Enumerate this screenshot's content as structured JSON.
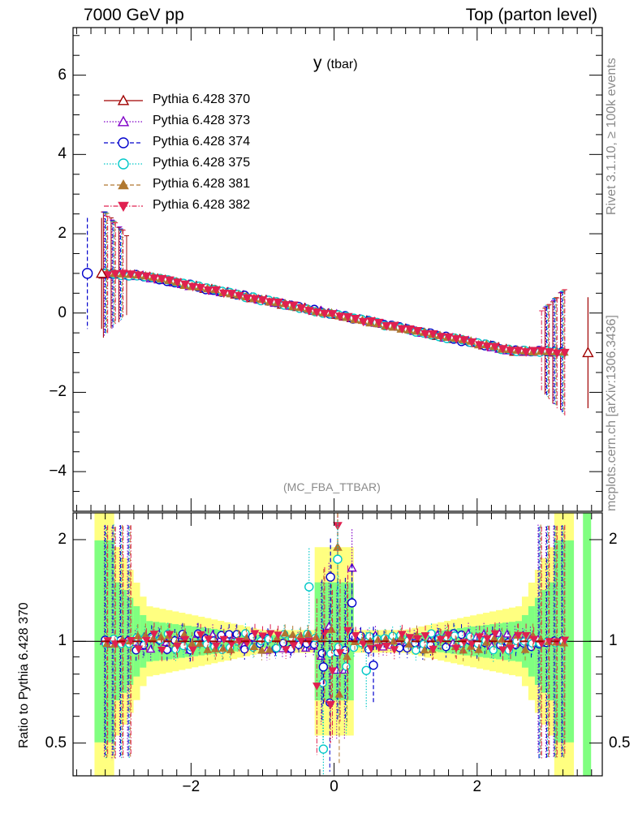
{
  "header": {
    "left_title": "7000 GeV pp",
    "right_title": "Top (parton level)"
  },
  "side_labels": {
    "rivet": "Rivet 3.1.10, ≥ 100k events",
    "mcplots": "mcplots.cern.ch [arXiv:1306.3436]"
  },
  "colors": {
    "370": "#a00000",
    "373": "#8000c8",
    "374": "#0000cc",
    "375": "#00c8c8",
    "381": "#b07830",
    "382": "#e02050",
    "band_yellow": "#ffff80",
    "band_green": "#80ff80"
  },
  "chart_data": [
    {
      "type": "line",
      "title": "y",
      "title_suffix": "(tbar)",
      "watermark": "(MC_FBA_TTBAR)",
      "xlim": [
        -3.65,
        3.75
      ],
      "ylim": [
        -5,
        7.2
      ],
      "y_ticks": [
        {
          "value": -4,
          "label": "−4"
        },
        {
          "value": -2,
          "label": "−2"
        },
        {
          "value": 0,
          "label": "0"
        },
        {
          "value": 2,
          "label": "2"
        },
        {
          "value": 4,
          "label": "4"
        },
        {
          "value": 6,
          "label": "6"
        }
      ],
      "legend_position": "top-left",
      "series": [
        {
          "name": "Pythia 6.428 370",
          "key": "370",
          "marker": "triangle-open",
          "dash": "solid"
        },
        {
          "name": "Pythia 6.428 373",
          "key": "373",
          "marker": "triangle-open",
          "dash": "dotted"
        },
        {
          "name": "Pythia 6.428 374",
          "key": "374",
          "marker": "circle-open",
          "dash": "dashed"
        },
        {
          "name": "Pythia 6.428 375",
          "key": "375",
          "marker": "circle-open",
          "dash": "dotted"
        },
        {
          "name": "Pythia 6.428 381",
          "key": "381",
          "marker": "triangle-filled",
          "dash": "dashed"
        },
        {
          "name": "Pythia 6.428 382",
          "key": "382",
          "marker": "triangle-down-filled",
          "dash": "dashdot"
        }
      ],
      "trend": {
        "x": [
          -3.3,
          -2.7,
          2.5,
          3.3
        ],
        "y": [
          1.0,
          0.95,
          -0.95,
          -1.0
        ]
      },
      "outliers": [
        {
          "series": "374",
          "x": -3.45,
          "y": 1.0,
          "err": 1.4
        },
        {
          "series": "370",
          "x": -3.25,
          "y": 1.0,
          "err": 1.4
        },
        {
          "series": "370",
          "x": 3.55,
          "y": -1.0,
          "err": 1.4
        }
      ]
    },
    {
      "type": "line",
      "ylabel": "Ratio to Pythia 6.428 370",
      "xlim": [
        -3.65,
        3.75
      ],
      "ylim": [
        0.4,
        2.4
      ],
      "y_scale": "log",
      "y_ticks": [
        {
          "value": 0.5,
          "label": "0.5"
        },
        {
          "value": 1,
          "label": "1"
        },
        {
          "value": 2,
          "label": "2"
        }
      ],
      "x_ticks": [
        {
          "value": -2,
          "label": "−2"
        },
        {
          "value": 0,
          "label": "0"
        },
        {
          "value": 2,
          "label": "2"
        }
      ],
      "reference": 1.0,
      "feature_points": [
        {
          "series": "382",
          "x": 0.05,
          "y": 2.2
        },
        {
          "series": "381",
          "x": 0.05,
          "y": 1.9
        },
        {
          "series": "375",
          "x": 0.05,
          "y": 1.75
        },
        {
          "series": "373",
          "x": 0.25,
          "y": 1.65
        },
        {
          "series": "374",
          "x": -0.05,
          "y": 1.55
        },
        {
          "series": "375",
          "x": -0.35,
          "y": 1.45
        },
        {
          "series": "374",
          "x": 0.25,
          "y": 1.3
        },
        {
          "series": "382",
          "x": -0.05,
          "y": 0.65
        },
        {
          "series": "375",
          "x": -0.15,
          "y": 0.48
        },
        {
          "series": "375",
          "x": 0.45,
          "y": 0.82
        },
        {
          "series": "374",
          "x": 0.55,
          "y": 0.85
        },
        {
          "series": "374",
          "x": -0.15,
          "y": 0.84
        }
      ]
    }
  ]
}
